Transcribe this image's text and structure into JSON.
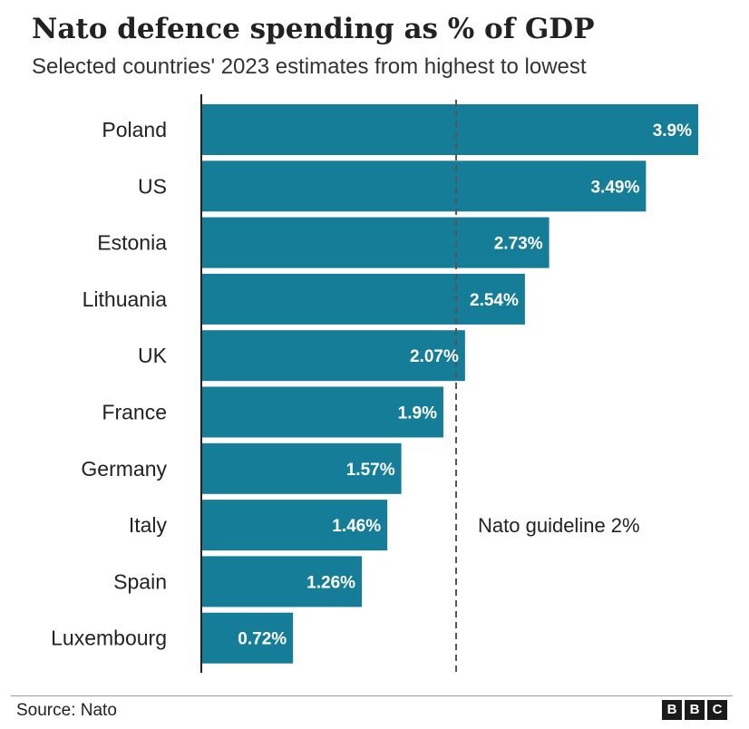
{
  "chart_data": {
    "type": "bar",
    "orientation": "horizontal",
    "title": "Nato defence spending as % of GDP",
    "subtitle": "Selected countries' 2023 estimates from highest to lowest",
    "categories": [
      "Poland",
      "US",
      "Estonia",
      "Lithuania",
      "UK",
      "France",
      "Germany",
      "Italy",
      "Spain",
      "Luxembourg"
    ],
    "values": [
      3.9,
      3.49,
      2.73,
      2.54,
      2.07,
      1.9,
      1.57,
      1.46,
      1.26,
      0.72
    ],
    "value_labels": [
      "3.9%",
      "3.49%",
      "2.73%",
      "2.54%",
      "2.07%",
      "1.9%",
      "1.57%",
      "1.46%",
      "1.26%",
      "0.72%"
    ],
    "xlim": [
      0,
      3.9
    ],
    "grid": false,
    "bar_color": "#167d99",
    "reference_line": {
      "value": 2,
      "label": "Nato guideline 2%"
    }
  },
  "footer": {
    "source": "Source: Nato",
    "logo_letters": [
      "B",
      "B",
      "C"
    ]
  }
}
